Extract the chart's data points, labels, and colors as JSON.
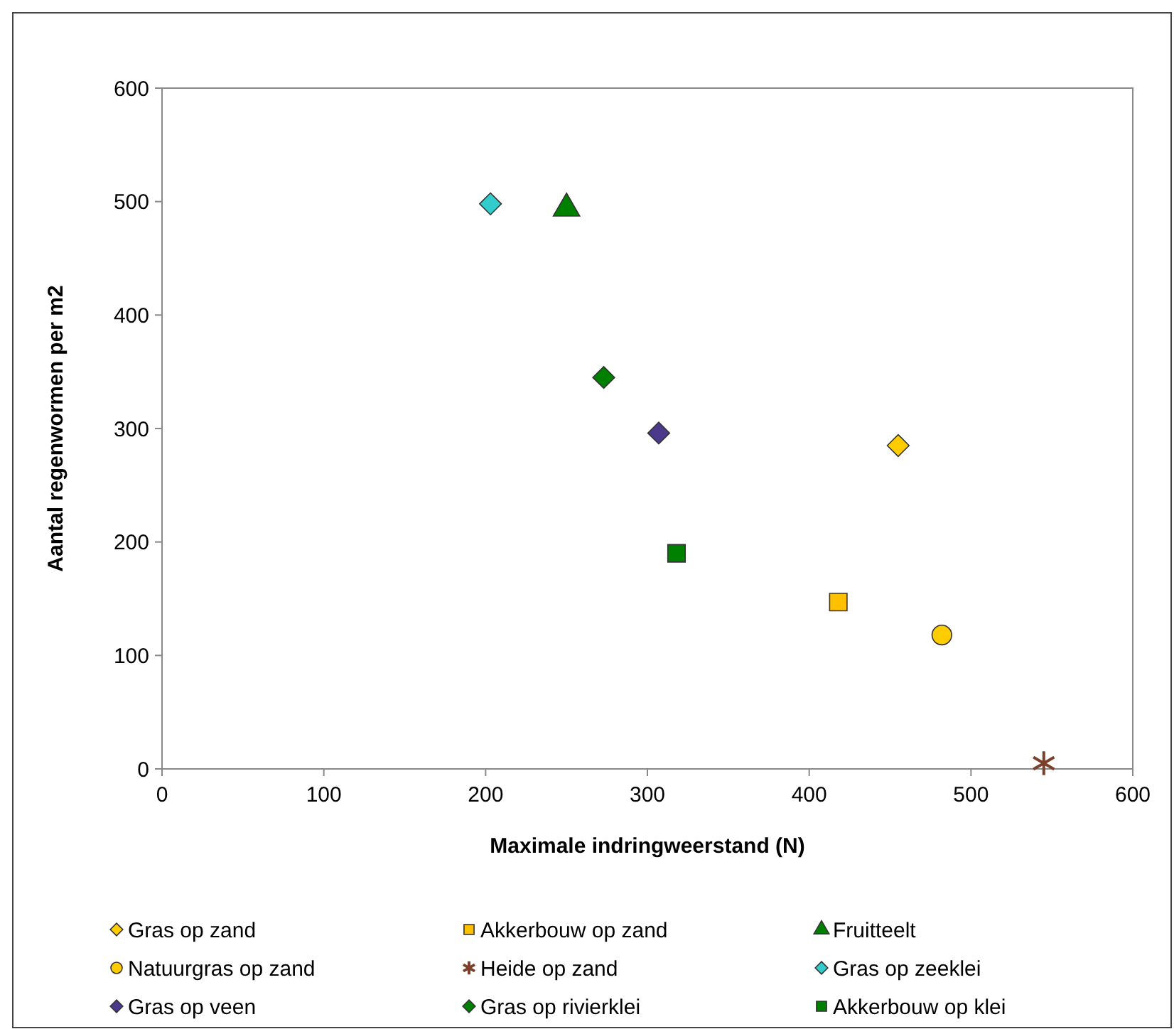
{
  "chart_data": {
    "type": "scatter",
    "xlabel": "Maximale indringweerstand (N)",
    "ylabel": "Aantal regenwormen per m2",
    "xlim": [
      0,
      600
    ],
    "xticks": [
      0,
      100,
      200,
      300,
      400,
      500,
      600
    ],
    "ylim": [
      0,
      600
    ],
    "yticks": [
      0,
      100,
      200,
      300,
      400,
      500,
      600
    ],
    "grid": false,
    "legend": "bottom",
    "series": [
      {
        "name": "Gras op zand",
        "color": "#ffcc00",
        "marker": "diamond",
        "x": [
          455
        ],
        "values": [
          285
        ]
      },
      {
        "name": "Akkerbouw op zand",
        "color": "#ffc000",
        "marker": "square",
        "x": [
          418
        ],
        "values": [
          147
        ]
      },
      {
        "name": "Fruitteelt",
        "color": "#008000",
        "marker": "triangle",
        "x": [
          250
        ],
        "values": [
          494
        ]
      },
      {
        "name": "Natuurgras op zand",
        "color": "#ffcc00",
        "marker": "circle",
        "x": [
          482
        ],
        "values": [
          118
        ]
      },
      {
        "name": "Heide op zand",
        "color": "#7b3f2a",
        "marker": "cross",
        "x": [
          545
        ],
        "values": [
          5
        ]
      },
      {
        "name": "Gras op zeeklei",
        "color": "#33cccc",
        "marker": "diamond",
        "x": [
          203
        ],
        "values": [
          498
        ]
      },
      {
        "name": "Gras op veen",
        "color": "#4b3a8c",
        "marker": "diamond",
        "x": [
          307
        ],
        "values": [
          296
        ]
      },
      {
        "name": "Gras op rivierklei",
        "color": "#008000",
        "marker": "diamond",
        "x": [
          273
        ],
        "values": [
          345
        ]
      },
      {
        "name": "Akkerbouw op klei",
        "color": "#008000",
        "marker": "square",
        "x": [
          318
        ],
        "values": [
          190
        ]
      }
    ]
  }
}
